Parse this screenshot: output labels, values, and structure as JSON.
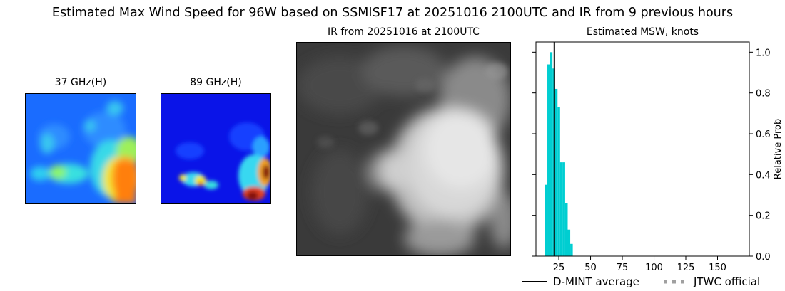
{
  "figure": {
    "title": "Estimated Max Wind Speed for 96W based on SSMISF17 at 20251016 2100UTC and IR from 9 previous hours"
  },
  "panels": {
    "ghz37": {
      "title": "37 GHz(H)"
    },
    "ghz89": {
      "title": "89 GHz(H)"
    },
    "ir": {
      "title": "IR from 20251016 at 2100UTC"
    }
  },
  "chart_data": {
    "type": "bar",
    "title": "Estimated MSW, knots",
    "xlabel": "",
    "ylabel": "Relative Prob",
    "xlim": [
      7,
      175
    ],
    "ylim": [
      0,
      1.05
    ],
    "x_ticks": [
      25,
      50,
      75,
      100,
      125,
      150
    ],
    "y_ticks": [
      0.0,
      0.2,
      0.4,
      0.6,
      0.8,
      1.0
    ],
    "y_tick_labels": [
      "0.0",
      "0.2",
      "0.4",
      "0.6",
      "0.8",
      "1.0"
    ],
    "bin_width": 2,
    "bars": [
      {
        "x0": 14,
        "value": 0.35
      },
      {
        "x0": 16,
        "value": 0.94
      },
      {
        "x0": 18,
        "value": 1.0
      },
      {
        "x0": 20,
        "value": 0.92
      },
      {
        "x0": 22,
        "value": 0.82
      },
      {
        "x0": 24,
        "value": 0.73
      },
      {
        "x0": 26,
        "value": 0.46
      },
      {
        "x0": 28,
        "value": 0.46
      },
      {
        "x0": 30,
        "value": 0.26
      },
      {
        "x0": 32,
        "value": 0.13
      },
      {
        "x0": 34,
        "value": 0.06
      }
    ],
    "bar_color": "#00CED1",
    "dmint_average": 21.5,
    "legend": [
      {
        "label": "D-MINT average",
        "style": "solid",
        "color": "#000000"
      },
      {
        "label": "JTWC official",
        "style": "dotted",
        "color": "#a0a0a0"
      }
    ]
  }
}
